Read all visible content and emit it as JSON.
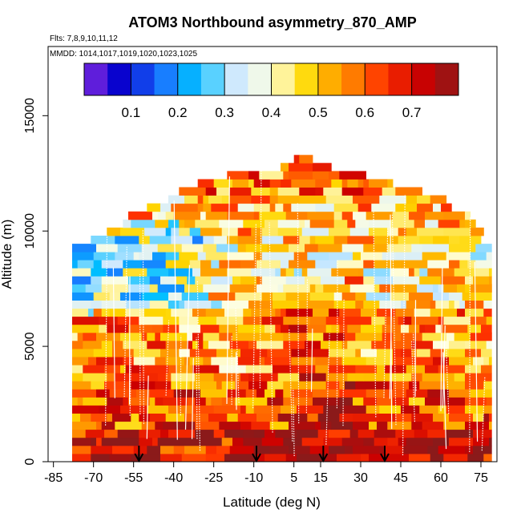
{
  "chart_data": {
    "type": "heatmap",
    "title": "ATOM3 Northbound asymmetry_870_AMP",
    "flights_note": "Flts: 7,8,9,10,11,12",
    "dates_note": "MMDD: 1014,1017,1019,1020,1023,1025",
    "xlabel": "Latitude (deg N)",
    "ylabel": "Altitude (m)",
    "xlim": [
      -87,
      81
    ],
    "ylim": [
      0,
      18000
    ],
    "x_ticks": [
      -85,
      -70,
      -55,
      -40,
      -25,
      -10,
      5,
      15,
      30,
      45,
      60,
      75
    ],
    "y_ticks": [
      0,
      5000,
      10000,
      15000
    ],
    "colorbar": {
      "range": [
        0,
        0.8
      ],
      "ticks": [
        0.1,
        0.2,
        0.3,
        0.4,
        0.5,
        0.6,
        0.7
      ],
      "colors": [
        "#8a2be2",
        "#0000cd",
        "#1e6fff",
        "#00bfff",
        "#cce8ff",
        "#ffffe0",
        "#ffd700",
        "#ff8c00",
        "#ff3300",
        "#cc0000",
        "#8b1a1a"
      ]
    },
    "markers_lat": [
      -53,
      -9,
      16,
      39
    ],
    "lat_range": [
      -78,
      79
    ],
    "altitude_bin_m": 350,
    "profile_summary": [
      {
        "alt_m": 500,
        "value": 0.7
      },
      {
        "alt_m": 2500,
        "value": 0.6
      },
      {
        "alt_m": 5000,
        "value": 0.55
      },
      {
        "alt_m": 7500,
        "value": 0.45
      },
      {
        "alt_m": 10000,
        "value": 0.5
      },
      {
        "alt_m": 12500,
        "value": 0.6
      }
    ]
  }
}
